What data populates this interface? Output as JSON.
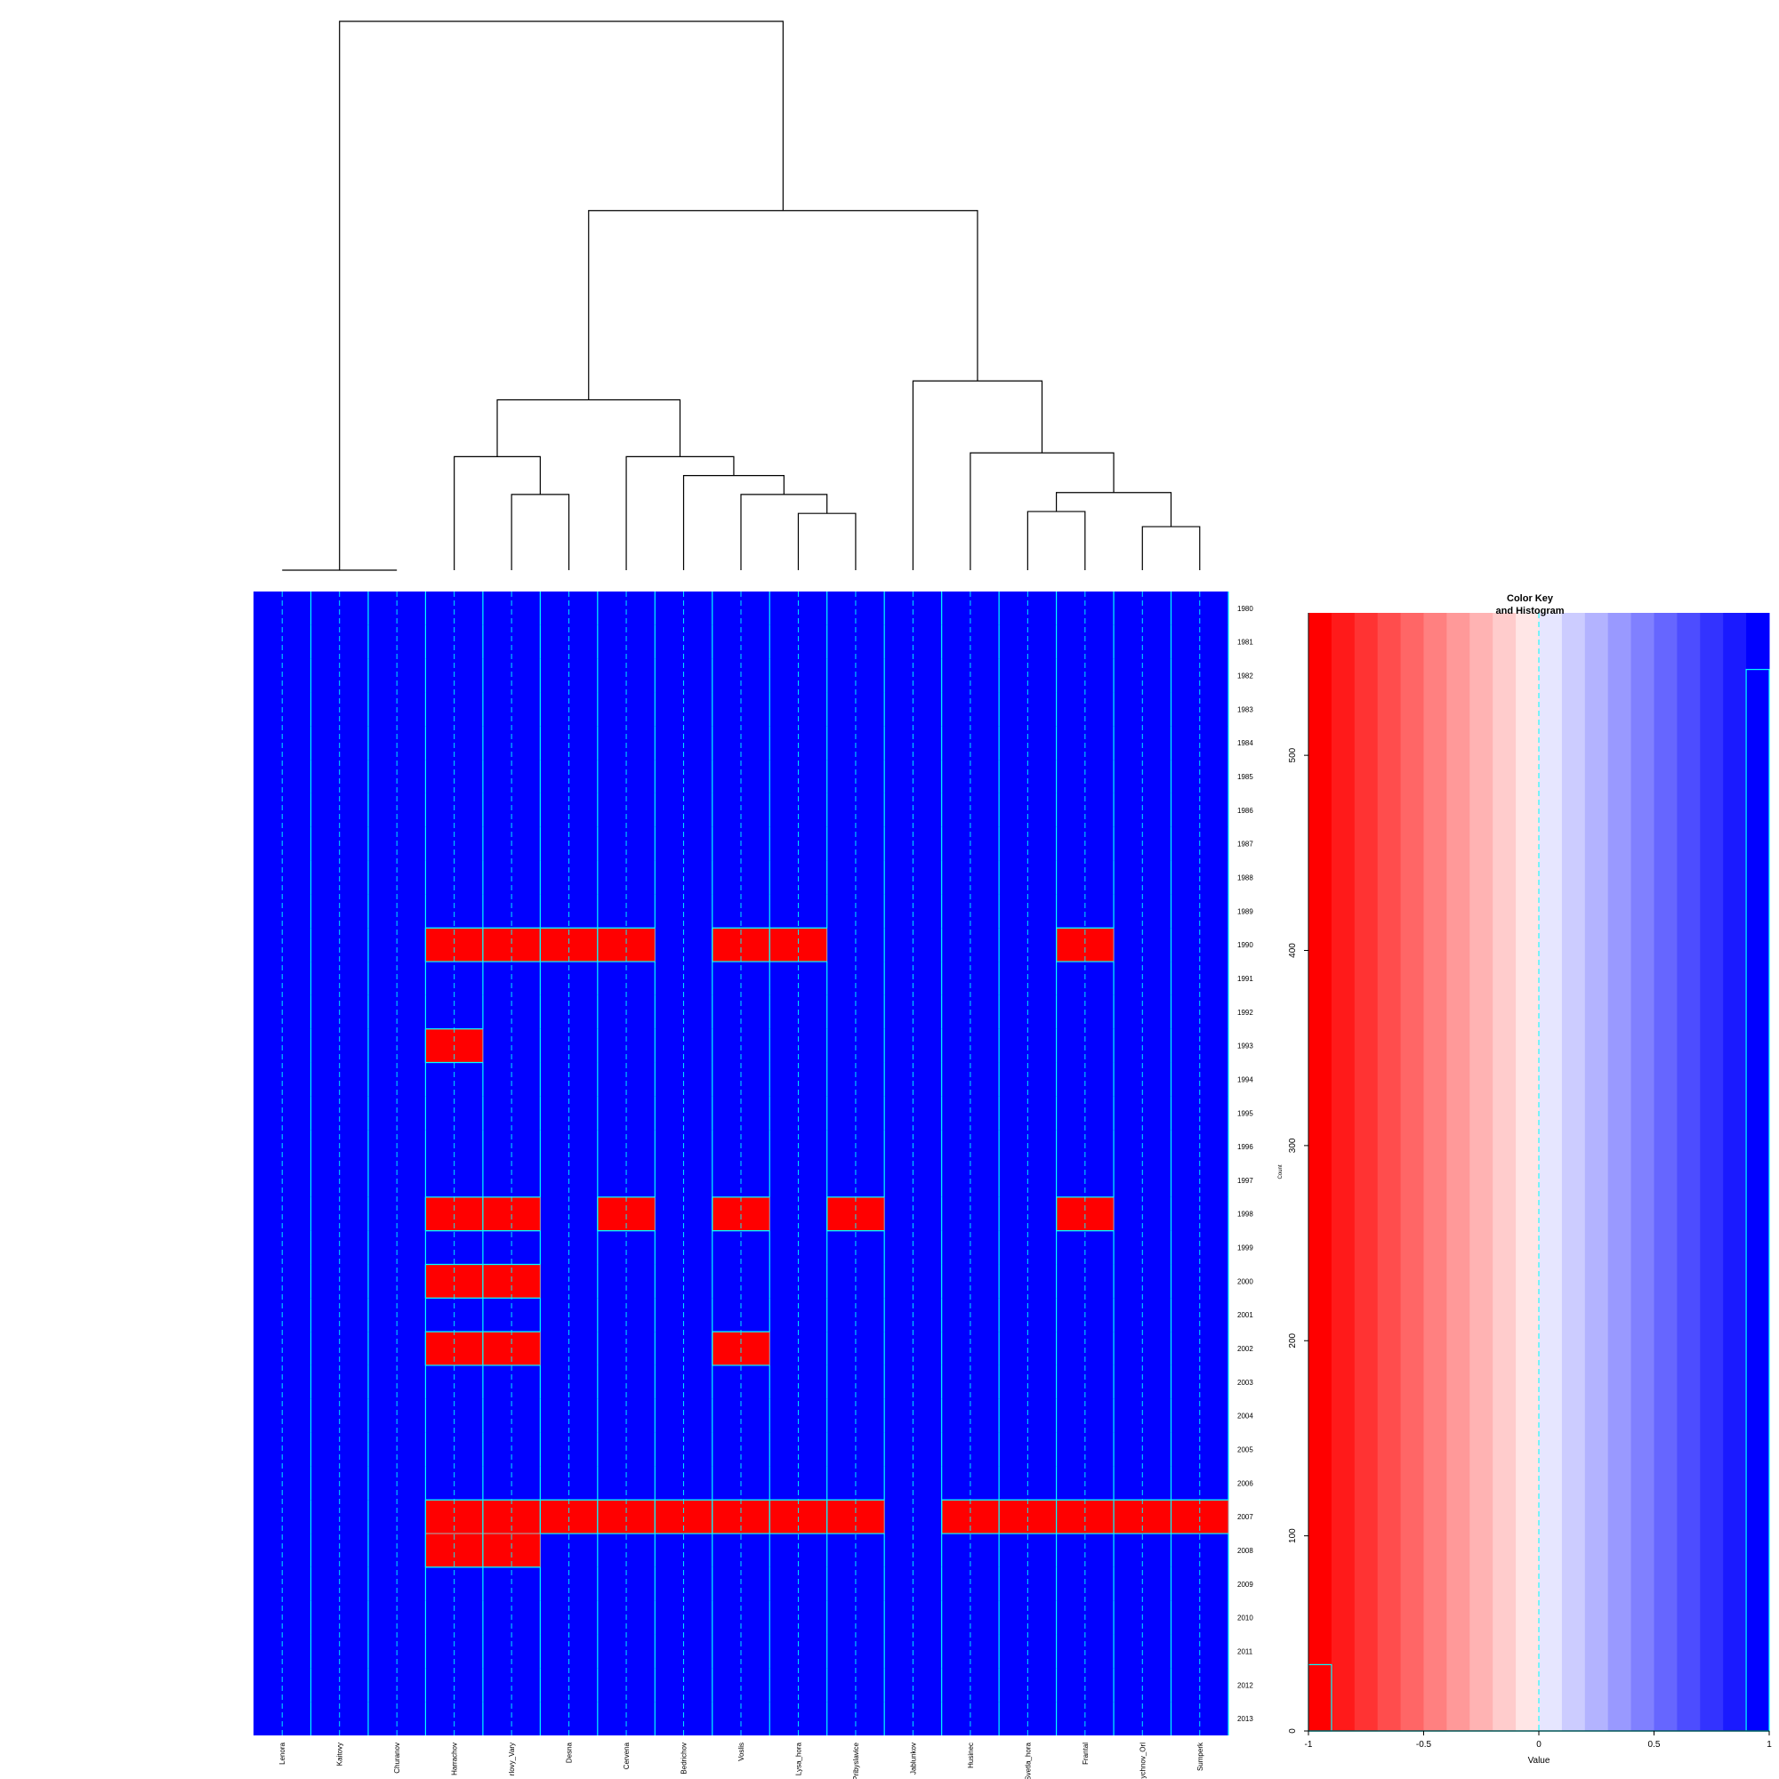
{
  "chart_data": [
    {
      "type": "heatmap",
      "columns": [
        "Lenora",
        "Kaitovy",
        "Churanov",
        "Harrachov",
        "Karlovy_Vary",
        "Desna",
        "Cervena",
        "Bedrichov",
        "Voslis",
        "Lysa_hora",
        "Pribyslavice",
        "Jablunkov",
        "Husinec",
        "Svetla_hora",
        "Frantal",
        "Rychnov_Orl",
        "Sumperk"
      ],
      "column_labels": [
        "Lenora",
        "Kaitovy",
        "Churanov",
        "Harrachov",
        "rlovy_Vary",
        "Desna",
        "Cervena",
        "Bedrichov",
        "Voslis",
        "Lysa_hora",
        "Pribyslavice",
        "Jablunkov",
        "Husinec",
        "Svetla_hora",
        "Frantal",
        "Rychnov_Orl",
        "Sumperk"
      ],
      "rows": [
        "1980",
        "1981",
        "1982",
        "1983",
        "1984",
        "1985",
        "1986",
        "1987",
        "1988",
        "1989",
        "1990",
        "1991",
        "1992",
        "1993",
        "1994",
        "1995",
        "1996",
        "1997",
        "1998",
        "1999",
        "2000",
        "2001",
        "2002",
        "2003",
        "2004",
        "2005",
        "2006",
        "2007",
        "2008",
        "2009",
        "2010",
        "2011",
        "2012",
        "2013"
      ],
      "default_value": 1,
      "cells_value_minus_one": [
        {
          "row": "1990",
          "columns": [
            "Harrachov",
            "Karlovy_Vary",
            "Desna",
            "Cervena",
            "Voslis",
            "Lysa_hora",
            "Frantal"
          ]
        },
        {
          "row": "1993",
          "columns": [
            "Harrachov"
          ]
        },
        {
          "row": "1998",
          "columns": [
            "Harrachov",
            "Karlovy_Vary",
            "Cervena",
            "Voslis",
            "Pribyslavice",
            "Frantal"
          ]
        },
        {
          "row": "2000",
          "columns": [
            "Harrachov",
            "Karlovy_Vary"
          ]
        },
        {
          "row": "2002",
          "columns": [
            "Harrachov",
            "Karlovy_Vary",
            "Voslis"
          ]
        },
        {
          "row": "2007",
          "columns": [
            "Harrachov",
            "Karlovy_Vary",
            "Desna",
            "Cervena",
            "Bedrichov",
            "Voslis",
            "Lysa_hora",
            "Pribyslavice",
            "Husinec",
            "Svetla_hora",
            "Frantal",
            "Rychnov_Orl",
            "Sumperk"
          ]
        },
        {
          "row": "2008",
          "columns": [
            "Harrachov",
            "Karlovy_Vary"
          ]
        }
      ],
      "dendrogram": {
        "merges": [
          {
            "a": "Lenora",
            "b": "Churanov",
            "height": 0
          },
          {
            "a": "Lysa_hora",
            "b": "Pribyslavice",
            "height": 3
          },
          {
            "a": "Voslis",
            "b": "N2",
            "height": 4
          },
          {
            "a": "Bedrichov",
            "b": "N3",
            "height": 5
          },
          {
            "a": "Cervena",
            "b": "N4",
            "height": 6
          },
          {
            "a": "Karlovy_Vary",
            "b": "Desna",
            "height": 4
          },
          {
            "a": "Harrachov",
            "b": "N6",
            "height": 6
          },
          {
            "a": "N7",
            "b": "N5",
            "height": 9
          },
          {
            "a": "Svetla_hora",
            "b": "Frantal",
            "height": 3.1
          },
          {
            "a": "Rychnov_Orl",
            "b": "Sumperk",
            "height": 2.3
          },
          {
            "a": "N9",
            "b": "N10",
            "height": 4.1
          },
          {
            "a": "Husinec",
            "b": "N11",
            "height": 6.2
          },
          {
            "a": "Jablunkov",
            "b": "N12",
            "height": 10
          },
          {
            "a": "N8",
            "b": "N13",
            "height": 19
          },
          {
            "a": "N1",
            "b": "N14",
            "height": 29
          }
        ]
      },
      "colors": {
        "low": "#ff0000",
        "high": "#0000ff",
        "trace": "#00ffff",
        "border": "#aaaaaa"
      }
    },
    {
      "type": "bar",
      "title": "Color Key\nand Histogram",
      "xlabel": "Value",
      "ylabel": "Count",
      "xlim": [
        -1,
        1
      ],
      "ylim": [
        0,
        573
      ],
      "xticks": [
        "-1",
        "-0.5",
        "0",
        "0.5",
        "1"
      ],
      "yticks": [
        "0",
        "100",
        "200",
        "300",
        "400",
        "500"
      ],
      "histogram": [
        {
          "bin": [
            -1,
            -0.9
          ],
          "count": 34
        },
        {
          "bin": [
            0.9,
            1
          ],
          "count": 544
        }
      ],
      "color_key": [
        "#ff0000",
        "#ff1a1a",
        "#ff3333",
        "#ff4d4d",
        "#ff6666",
        "#ff8080",
        "#ff9999",
        "#ffb3b3",
        "#ffcccc",
        "#ffe6e6",
        "#e6e6ff",
        "#ccccff",
        "#b3b3ff",
        "#9999ff",
        "#8080ff",
        "#6666ff",
        "#4d4dff",
        "#3333ff",
        "#1a1aff",
        "#0000ff"
      ]
    }
  ]
}
